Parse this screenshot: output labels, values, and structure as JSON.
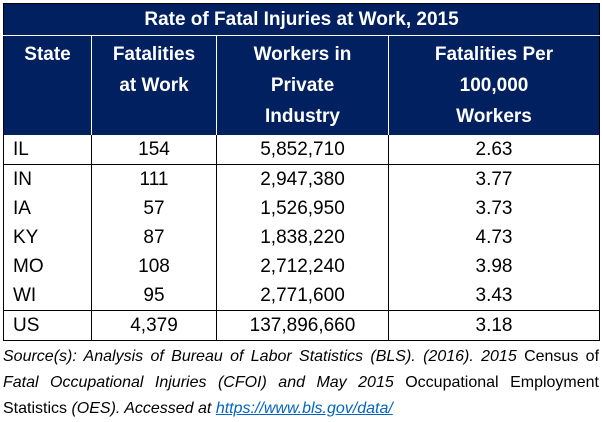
{
  "title": "Rate of Fatal Injuries at Work, 2015",
  "headers": [
    {
      "lines": [
        "State"
      ]
    },
    {
      "lines": [
        "Fatalities",
        "at Work"
      ]
    },
    {
      "lines": [
        "Workers in",
        "Private",
        "Industry"
      ]
    },
    {
      "lines": [
        "Fatalities Per",
        "100,000",
        "Workers"
      ]
    }
  ],
  "rows": [
    {
      "state": "IL",
      "fatalities": "154",
      "workers": "5,852,710",
      "rate": "2.63"
    },
    {
      "state": "IN",
      "fatalities": "111",
      "workers": "2,947,380",
      "rate": "3.77"
    },
    {
      "state": "IA",
      "fatalities": "57",
      "workers": "1,526,950",
      "rate": "3.73"
    },
    {
      "state": "KY",
      "fatalities": "87",
      "workers": "1,838,220",
      "rate": "4.73"
    },
    {
      "state": "MO",
      "fatalities": "108",
      "workers": "2,712,240",
      "rate": "3.98"
    },
    {
      "state": "WI",
      "fatalities": "95",
      "workers": "2,771,600",
      "rate": "3.43"
    },
    {
      "state": "US",
      "fatalities": "4,379",
      "workers": "137,896,660",
      "rate": "3.18"
    }
  ],
  "source": {
    "part1": "Source(s): Analysis of Bureau of Labor Statistics (BLS). (2016). 2015",
    "part2": " Census of ",
    "part3": "Fatal Occupational Injuries (CFOI) and May 2015",
    "part4": " Occupational Employment Statistics ",
    "part5": "(OES). Accessed at ",
    "link": "https://www.bls.gov/data/"
  },
  "colors": {
    "header_bg": "#002060",
    "header_text": "#ffffff",
    "link": "#0563c1"
  }
}
